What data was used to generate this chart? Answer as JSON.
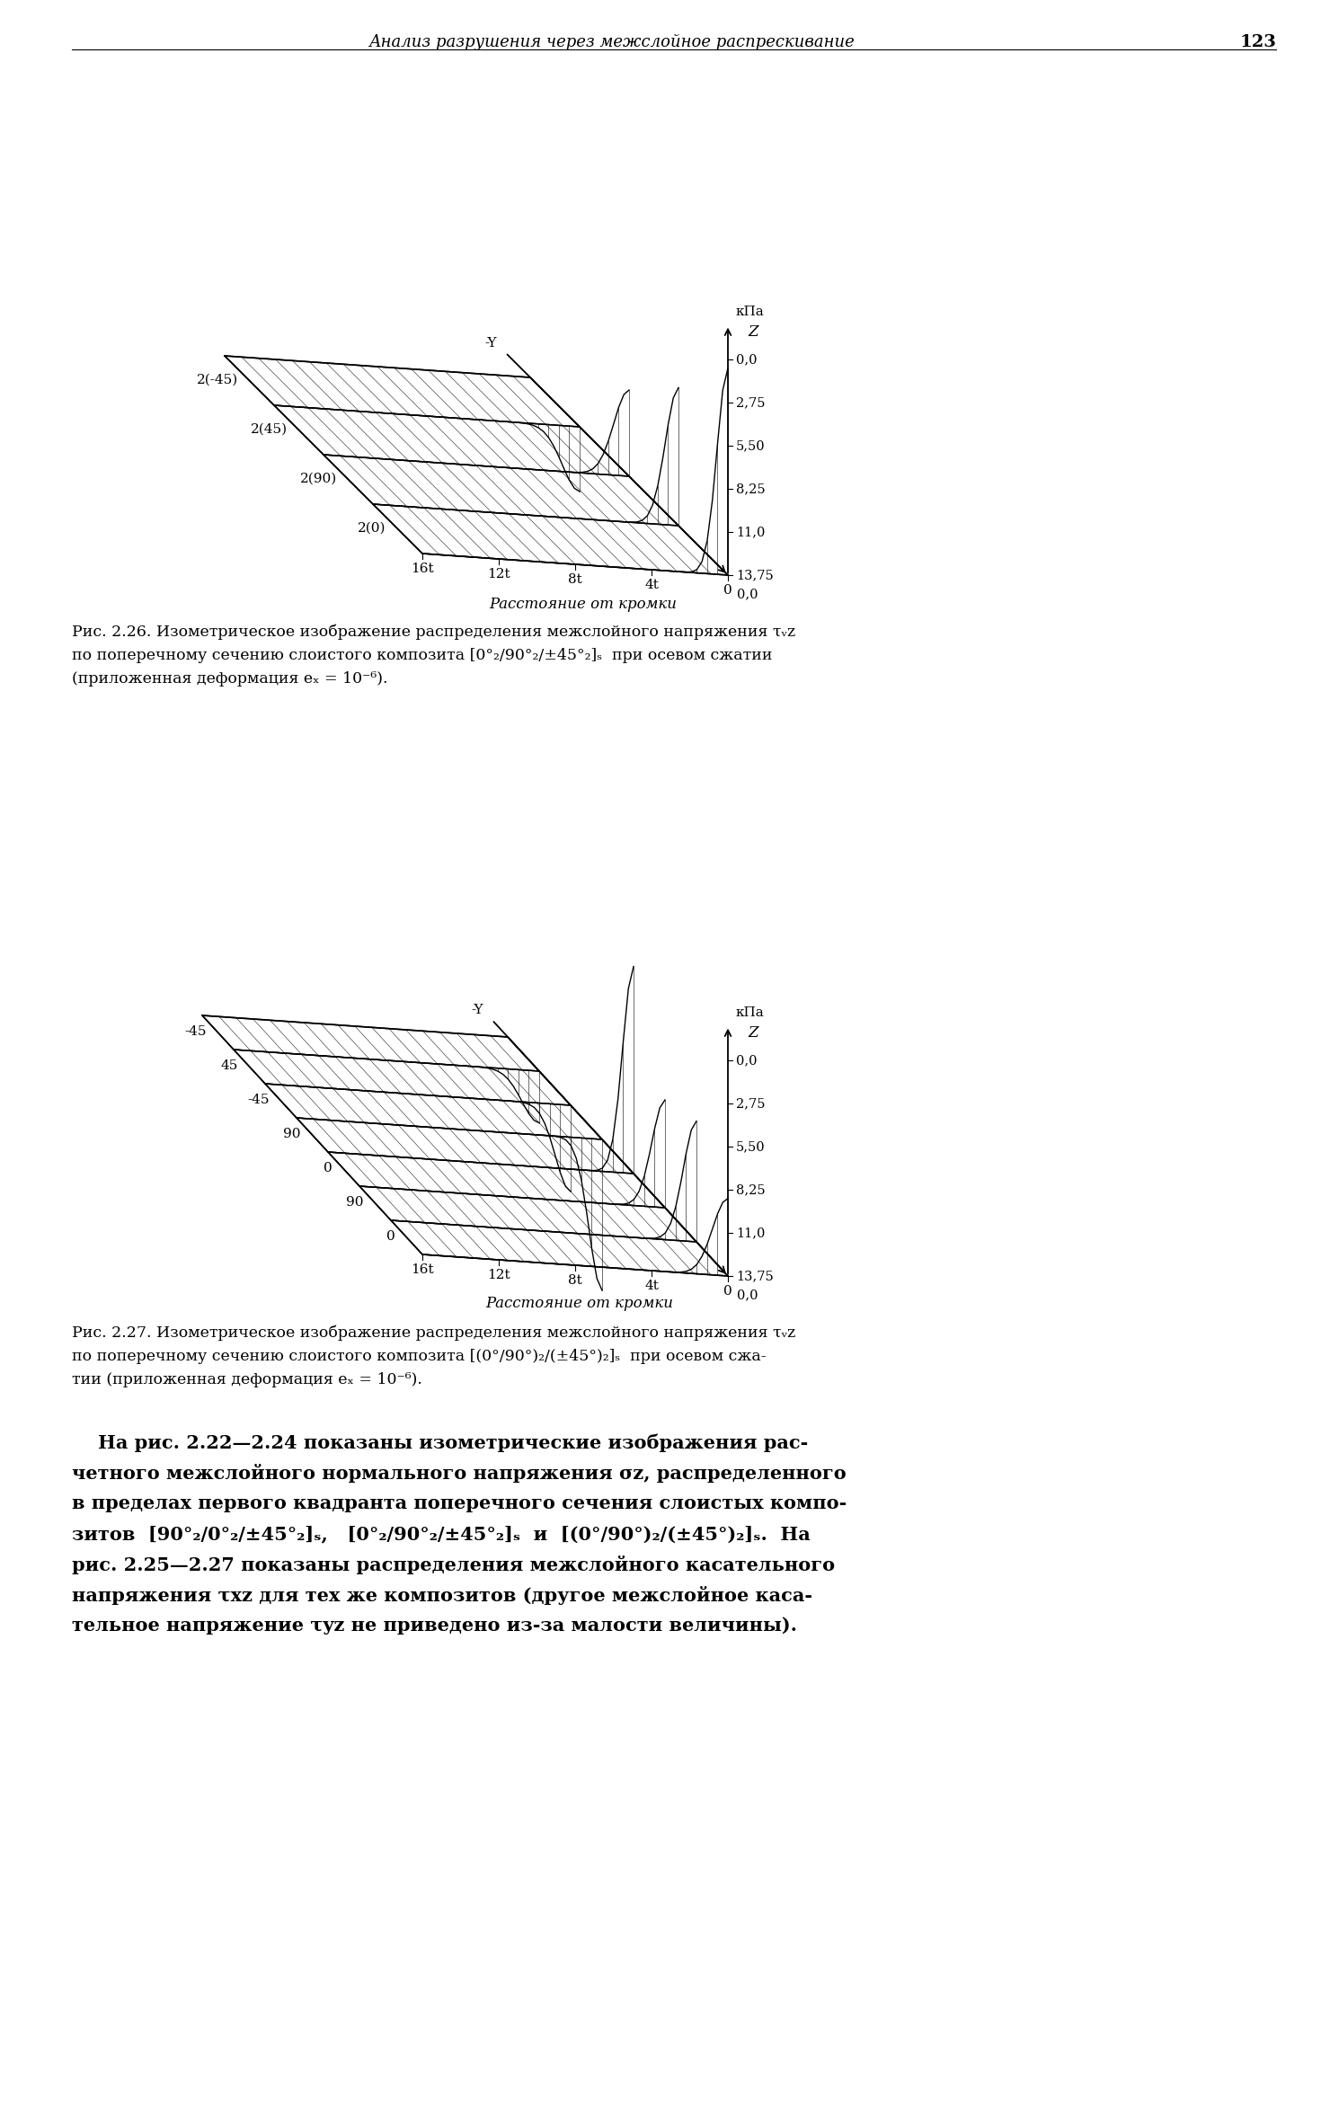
{
  "page_header": "Анализ разрушения через межслойное распрескивание",
  "page_number": "123",
  "fig1_layers": [
    "2(0)",
    "2(90)",
    "2(45)",
    "2(-45)"
  ],
  "fig1_xticks": [
    "16t",
    "12t",
    "8t",
    "4t",
    "0"
  ],
  "fig1_xlabel": "Расстояние от кромки",
  "fig1_kpa": "кПа",
  "fig1_z": "Z",
  "fig1_ny": "-Y",
  "fig1_zticks": [
    "13,75",
    "11,0",
    "8,25",
    "5,50",
    "2,75",
    "0,0"
  ],
  "fig1_cap1": "Рис. 2.26. Изометрическое изображение распределения межслойного напряжения τᵥz",
  "fig1_cap2": "по поперечному сечению слоистого композита [0°₂/90°₂/±45°₂]ₛ  при осевом сжатии",
  "fig1_cap3": "(приложенная деформация eₓ = 10⁻⁶).",
  "fig2_layers": [
    "0",
    "90",
    "0",
    "90",
    "-45",
    "45",
    "-45"
  ],
  "fig2_xticks": [
    "16t",
    "12t",
    "8t",
    "4t",
    "0"
  ],
  "fig2_xlabel": "Расстояние от кромки",
  "fig2_kpa": "кПа",
  "fig2_z": "Z",
  "fig2_ny": "-Y",
  "fig2_zticks": [
    "13,75",
    "11,0",
    "8,25",
    "5,50",
    "2,75",
    "0,0"
  ],
  "fig2_cap1": "Рис. 2.27. Изометрическое изображение распределения межслойного напряжения τᵥz",
  "fig2_cap2": "по поперечному сечению слоистого композита [(0°/90°)₂/(±45°)₂]ₛ  при осевом сжа-",
  "fig2_cap3": "тии (приложенная деформация eₓ = 10⁻⁶).",
  "body1": "    На рис. 2.22—2.24 показаны изометрические изображения рас-",
  "body2": "четного межслойного нормального напряжения σz, распределенного",
  "body3": "в пределах первого квадранта поперечного сечения слоистых компо-",
  "body4": "зитов  [90°₂/0°₂/±45°₂]ₛ,   [0°₂/90°₂/±45°₂]ₛ  и  [(0°/90°)₂/(±45°)₂]ₛ.  На",
  "body5": "рис. 2.25—2.27 показаны распределения межслойного касательного",
  "body6": "напряжения τxz для тех же композитов (другое межслойное каса-",
  "body7": "тельное напряжение τyz не приведено из-за малости величины).",
  "bg_color": "#ffffff",
  "text_color": "#000000",
  "line_color": "#000000"
}
